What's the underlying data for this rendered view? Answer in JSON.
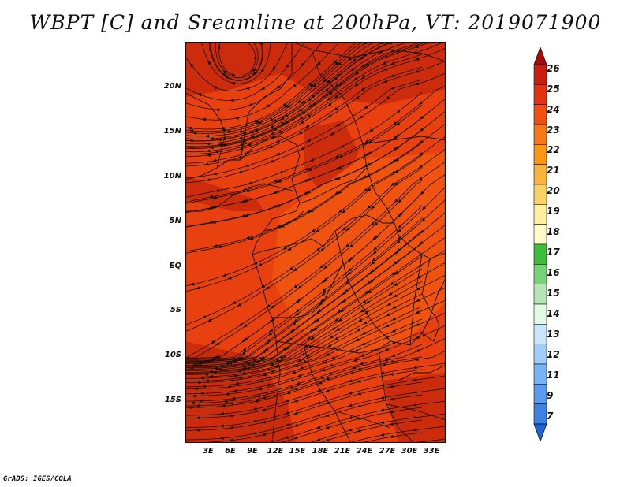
{
  "title": "WBPT [C] and Sreamline at 200hPa, VT: 2019071900",
  "credit": "GrADS: IGES/COLA",
  "lat_labels": [
    "20N",
    "15N",
    "10N",
    "5N",
    "EQ",
    "5S",
    "10S",
    "15S"
  ],
  "lon_labels": [
    "3E",
    "6E",
    "9E",
    "12E",
    "15E",
    "18E",
    "21E",
    "24E",
    "27E",
    "30E",
    "33E"
  ],
  "colorbar": {
    "labels": [
      "26",
      "25",
      "24",
      "23",
      "22",
      "21",
      "20",
      "19",
      "18",
      "17",
      "16",
      "15",
      "14",
      "13",
      "12",
      "11",
      "9",
      "7"
    ],
    "colors": [
      "#a50a0a",
      "#c81e0f",
      "#e1330f",
      "#f0500f",
      "#f57814",
      "#fa9614",
      "#fab43c",
      "#fad264",
      "#fff0a0",
      "#fffac8",
      "#3cbe3c",
      "#78d278",
      "#b4e6b4",
      "#e1fae6",
      "#c8e6ff",
      "#a0cdfa",
      "#78b4f5",
      "#5a9bf0",
      "#3c82e6",
      "#1e64d2"
    ]
  },
  "map_colors": {
    "base": "#e8400f",
    "dark": "#cc2c0c",
    "light": "#f0520f"
  }
}
